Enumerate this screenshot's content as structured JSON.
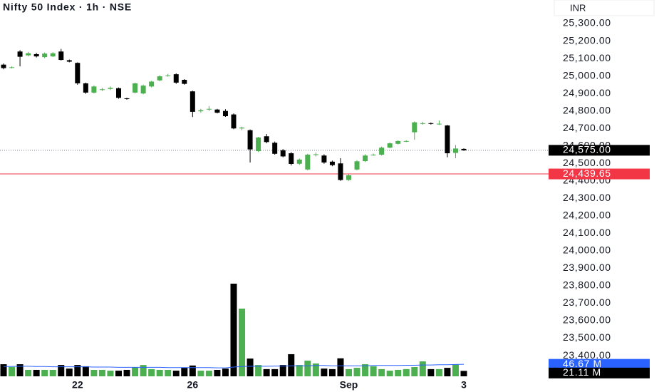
{
  "chart_data": {
    "type": "candlestick",
    "title": "Nifty 50 Index · 1h · NSE",
    "currency": "INR",
    "categories": [
      null,
      null,
      null,
      null,
      null,
      null,
      null,
      null,
      null,
      "22",
      null,
      null,
      null,
      null,
      null,
      null,
      null,
      null,
      null,
      null,
      null,
      null,
      null,
      "26",
      null,
      null,
      null,
      null,
      null,
      null,
      null,
      null,
      null,
      null,
      null,
      null,
      null,
      null,
      null,
      null,
      null,
      null,
      "Sep",
      null,
      null,
      null,
      null,
      null,
      null,
      null,
      null,
      null,
      null,
      null,
      null,
      null,
      "3"
    ],
    "open": [
      25065,
      25048,
      25140,
      25118,
      25125,
      25108,
      25112,
      25140,
      25090,
      25075,
      24958,
      24905,
      24922,
      24926,
      24930,
      24872,
      24905,
      24900,
      24940,
      24975,
      25000,
      25010,
      24978,
      24912,
      24798,
      24810,
      24808,
      24800,
      24780,
      24700,
      24690,
      24570,
      24655,
      24618,
      24575,
      24558,
      24498,
      24465,
      24548,
      24545,
      24510,
      24500,
      24405,
      24465,
      24513,
      24548,
      24550,
      24590,
      24612,
      24626,
      24678,
      24728,
      24730,
      24725,
      24717,
      24560,
      24583
    ],
    "high": [
      25072,
      25055,
      25148,
      25138,
      25132,
      25134,
      25136,
      25155,
      25094,
      25078,
      24962,
      24946,
      24932,
      24940,
      24934,
      24876,
      24962,
      24950,
      24972,
      25004,
      25012,
      25015,
      24982,
      24916,
      24812,
      24828,
      24812,
      24810,
      24786,
      24710,
      24694,
      24652,
      24668,
      24625,
      24582,
      24565,
      24528,
      24555,
      24562,
      24552,
      24516,
      24530,
      24440,
      24518,
      24552,
      24556,
      24596,
      24620,
      24632,
      24632,
      24740,
      24738,
      24734,
      24745,
      24720,
      24605,
      24586
    ],
    "low": [
      25038,
      25043,
      25055,
      25112,
      25106,
      25102,
      25108,
      25088,
      25078,
      24950,
      24898,
      24900,
      24914,
      24920,
      24870,
      24864,
      24900,
      24895,
      24935,
      24970,
      24996,
      24955,
      24950,
      24765,
      24790,
      24800,
      24786,
      24766,
      24695,
      24690,
      24505,
      24565,
      24615,
      24550,
      24535,
      24488,
      24492,
      24460,
      24540,
      24498,
      24484,
      24400,
      24400,
      24460,
      24508,
      24544,
      24545,
      24586,
      24608,
      24622,
      24635,
      24722,
      24722,
      24720,
      24535,
      24530,
      24572
    ],
    "close": [
      25045,
      25050,
      25110,
      25130,
      25112,
      25128,
      25130,
      25092,
      25082,
      24958,
      24905,
      24940,
      24924,
      24932,
      24875,
      24868,
      24958,
      24945,
      24968,
      24998,
      25003,
      24962,
      24955,
      24795,
      24804,
      24812,
      24790,
      24770,
      24700,
      24705,
      24580,
      24648,
      24622,
      24555,
      24540,
      24497,
      24522,
      24550,
      24552,
      24505,
      24490,
      24405,
      24432,
      24512,
      24545,
      24550,
      24590,
      24615,
      24628,
      24628,
      24735,
      24730,
      24728,
      24727,
      24558,
      24585,
      24575
    ],
    "volume": [
      47,
      36,
      47,
      25,
      25,
      25,
      25,
      44,
      30,
      44,
      39,
      25,
      25,
      22,
      22,
      25,
      36,
      44,
      28,
      25,
      25,
      22,
      33,
      42,
      22,
      22,
      25,
      30,
      360,
      263,
      69,
      44,
      28,
      28,
      44,
      86,
      44,
      61,
      50,
      30,
      28,
      70,
      28,
      33,
      47,
      39,
      28,
      22,
      25,
      28,
      36,
      58,
      28,
      28,
      33,
      47,
      21.11
    ],
    "volume_ma": [
      38,
      38,
      39,
      39,
      38,
      38,
      37,
      37,
      37,
      37,
      37,
      36,
      36,
      36,
      35,
      35,
      35,
      35,
      35,
      35,
      34,
      34,
      34,
      34,
      34,
      34,
      33,
      33,
      36,
      38,
      39,
      39,
      39,
      40,
      40,
      41,
      41,
      41,
      42,
      42,
      41,
      41,
      41,
      41,
      41,
      42,
      42,
      42,
      42,
      43,
      43,
      44,
      44,
      45,
      45,
      46,
      46.67
    ],
    "ylim": [
      23300,
      25400
    ],
    "yticks": [
      {
        "value": 25300,
        "label": "25,300.00"
      },
      {
        "value": 25200,
        "label": "25,200.00"
      },
      {
        "value": 25100,
        "label": "25,100.00"
      },
      {
        "value": 25000,
        "label": "25,000.00"
      },
      {
        "value": 24900,
        "label": "24,900.00"
      },
      {
        "value": 24800,
        "label": "24,800.00"
      },
      {
        "value": 24700,
        "label": "24,700.00"
      },
      {
        "value": 24600,
        "label": "24,600.00"
      },
      {
        "value": 24500,
        "label": "24,500.00"
      },
      {
        "value": 24400,
        "label": "24,400.00"
      },
      {
        "value": 24300,
        "label": "24,300.00"
      },
      {
        "value": 24200,
        "label": "24,200.00"
      },
      {
        "value": 24100,
        "label": "24,100.00"
      },
      {
        "value": 24000,
        "label": "24,000.00"
      },
      {
        "value": 23900,
        "label": "23,900.00"
      },
      {
        "value": 23800,
        "label": "23,800.00"
      },
      {
        "value": 23700,
        "label": "23,700.00"
      },
      {
        "value": 23600,
        "label": "23,600.00"
      },
      {
        "value": 23500,
        "label": "23,500.00"
      },
      {
        "value": 23400,
        "label": "23,400.00"
      }
    ],
    "volume_lim": [
      0,
      360
    ],
    "last_price": {
      "value": 24575,
      "label": "24,575.00"
    },
    "alert_line": {
      "value": 24439.65,
      "label": "24,439.65"
    },
    "volume_ma_label": {
      "value": 46.67,
      "label": "46.67 M"
    },
    "volume_last_label": {
      "value": 21.11,
      "label": "21.11 M"
    },
    "colors": {
      "up": "#4caf50",
      "down": "#000000",
      "ma": "#2962ff",
      "alert": "#f23645",
      "last": "#000000"
    }
  }
}
